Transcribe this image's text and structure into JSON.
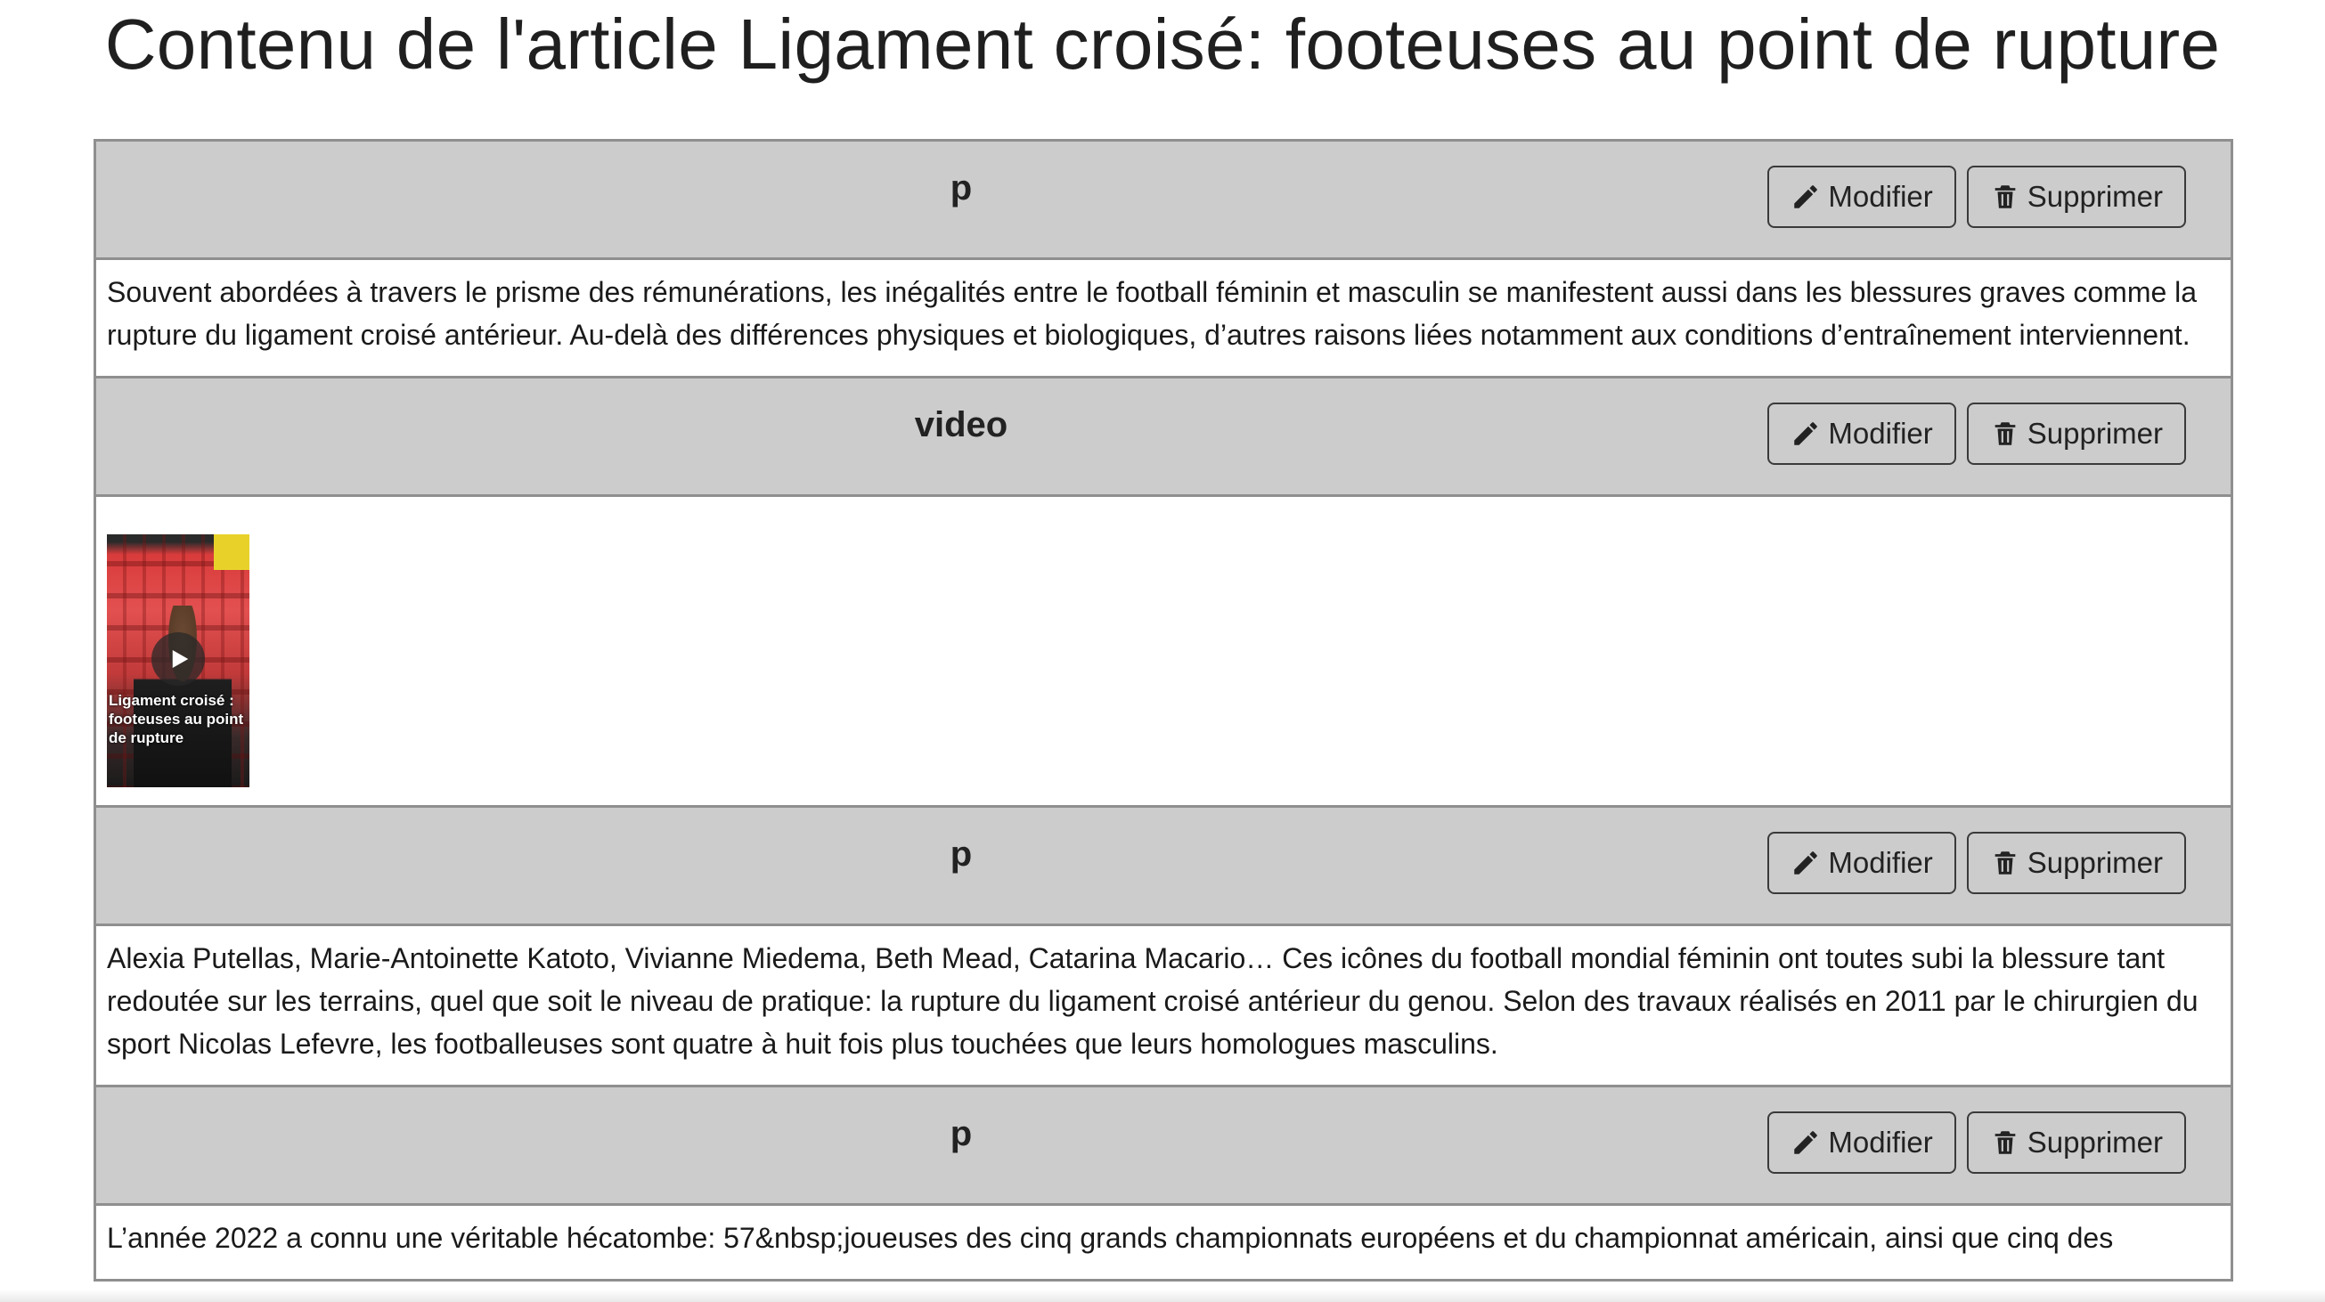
{
  "page": {
    "title": "Contenu de l'article Ligament croisé: footeuses au point de rupture"
  },
  "labels": {
    "edit": "Modifier",
    "delete": "Supprimer"
  },
  "icons": {
    "edit": "pencil-icon",
    "delete": "trash-icon",
    "play": "play-icon"
  },
  "blocks": [
    {
      "type": "p",
      "text": "Souvent abordées à travers le prisme des rémunérations, les inégalités entre le football féminin et masculin se manifestent aussi dans les blessures graves comme la rupture du ligament croisé antérieur. Au-delà des différences physiques et biologiques, d’autres raisons liées notamment aux conditions d’entraînement interviennent."
    },
    {
      "type": "video",
      "caption": "Ligament croisé : footeuses au point de rupture"
    },
    {
      "type": "p",
      "text": "Alexia Putellas, Marie-Antoinette Katoto, Vivianne Miedema, Beth Mead, Catarina Macario… Ces icônes du football mondial féminin ont toutes subi la blessure tant redoutée sur les terrains, quel que soit le niveau de pratique: la rupture du ligament croisé antérieur du genou. Selon des travaux réalisés en 2011 par le chirurgien du sport Nicolas Lefevre, les footballeuses sont quatre à huit fois plus touchées que leurs homologues masculins."
    },
    {
      "type": "p",
      "text": "L’année 2022 a connu une véritable hécatombe: 57&nbsp;joueuses des cinq grands championnats européens et du championnat américain, ainsi que cinq des"
    }
  ]
}
